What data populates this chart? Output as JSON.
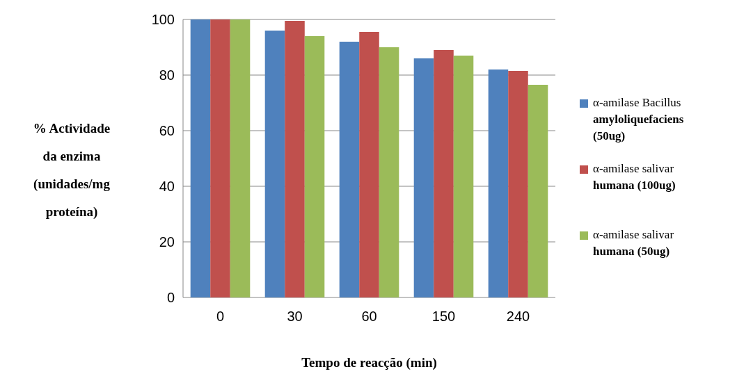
{
  "chart_data": {
    "type": "bar",
    "xlabel": "Tempo de reacção (min)",
    "ylabel": "% Actividade da enzima (unidades/mg proteína)",
    "categories": [
      "0",
      "30",
      "60",
      "150",
      "240"
    ],
    "series": [
      {
        "name": "α-amilase Bacillus amyloliquefaciens (50ug)",
        "color": "#4f81bd",
        "values": [
          100,
          96,
          92,
          86,
          82
        ]
      },
      {
        "name": "α-amilase salivar humana (100ug)",
        "color": "#c0504d",
        "values": [
          100,
          99.5,
          95.5,
          89,
          81.5
        ]
      },
      {
        "name": "α-amilase salivar humana (50ug)",
        "color": "#9bbb59",
        "values": [
          100,
          94,
          90,
          87,
          76.5
        ]
      }
    ],
    "ylim": [
      0,
      100
    ],
    "yticks": [
      0,
      20,
      40,
      60,
      80,
      100
    ],
    "grid": "y",
    "legend": "right"
  }
}
